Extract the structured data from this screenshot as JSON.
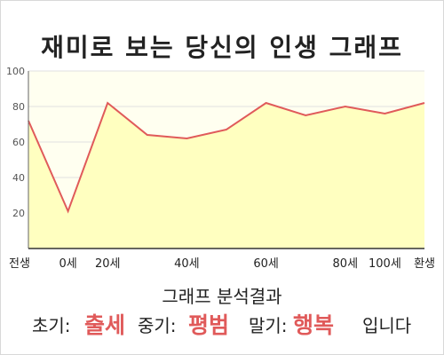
{
  "chart_data": {
    "type": "area",
    "title": "재미로 보는 당신의 인생 그래프",
    "x_labels": [
      "전생",
      "0세",
      "20세",
      "40세",
      "60세",
      "80세",
      "100세",
      "환생"
    ],
    "x": [
      "전생",
      "0세",
      "20세",
      "30세",
      "40세",
      "50세",
      "60세",
      "70세",
      "80세",
      "100세",
      "환생"
    ],
    "values": [
      72,
      21,
      82,
      64,
      62,
      67,
      82,
      75,
      80,
      76,
      82
    ],
    "yticks": [
      20,
      40,
      60,
      80,
      100
    ],
    "ylim": [
      0,
      100
    ],
    "grid": true,
    "colors": {
      "line": "#e05a5a",
      "fill": "#ffffc0",
      "background": "#fffff0",
      "grid": "#e0e0e0"
    }
  },
  "analysis": {
    "title": "그래프 분석결과",
    "early_label": "초기:",
    "early_value": "출세",
    "middle_label": "중기:",
    "middle_value": "평범",
    "late_label": "말기:",
    "late_value": "행복",
    "ending": "입니다"
  }
}
